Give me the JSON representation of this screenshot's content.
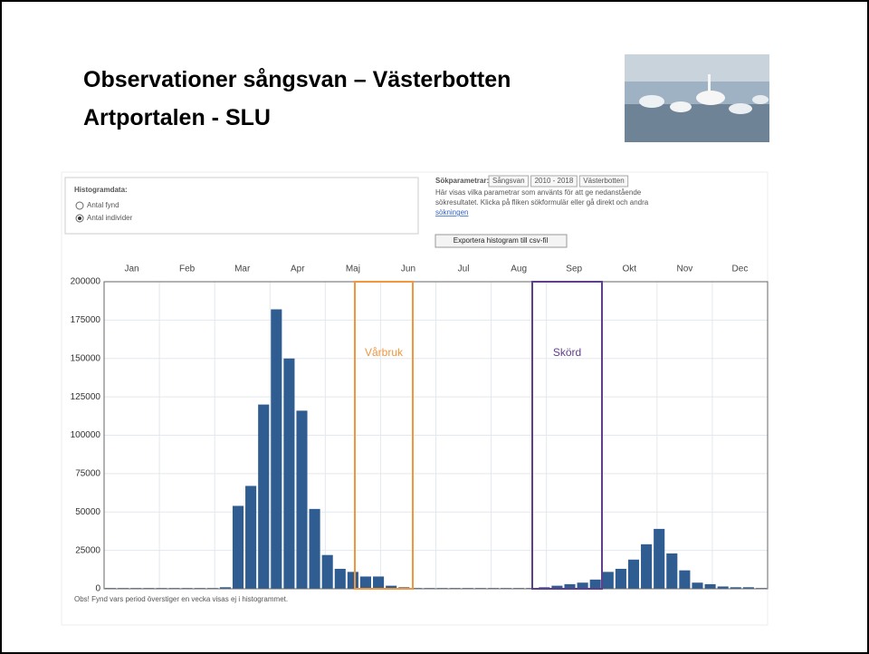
{
  "title": "Observationer sångsvan – Västerbotten",
  "subtitle": "Artportalen - SLU",
  "options": {
    "heading": "Histogramdata:",
    "items": [
      "Antal fynd",
      "Antal individer"
    ]
  },
  "search_params": {
    "heading": "Sökparametrar:",
    "tags": [
      "Sångsvan",
      "2010 - 2018",
      "Västerbotten"
    ],
    "text": [
      "Här visas vilka parametrar som använts för att ge nedanstående",
      "sökresultatet. Klicka på fliken sökformulär eller gå direkt och  andra",
      "sökningen"
    ]
  },
  "export_button": "Exportera histogram till csv-fil",
  "footnote": "Obs! Fynd vars period överstiger en vecka visas ej i histogrammet.",
  "chart_data": {
    "type": "bar",
    "color": "#2f5d91",
    "months": [
      "Jan",
      "Feb",
      "Mar",
      "Apr",
      "Maj",
      "Jun",
      "Jul",
      "Aug",
      "Sep",
      "Okt",
      "Nov",
      "Dec"
    ],
    "values": [
      500,
      500,
      500,
      500,
      500,
      500,
      500,
      500,
      500,
      1000,
      54000,
      67000,
      120000,
      182000,
      150000,
      116000,
      52000,
      22000,
      13000,
      11000,
      8000,
      8000,
      2000,
      1000,
      500,
      500,
      500,
      500,
      500,
      500,
      500,
      500,
      500,
      500,
      1000,
      2000,
      3000,
      4000,
      6000,
      11000,
      13000,
      19000,
      29000,
      39000,
      23000,
      12000,
      4000,
      3000,
      1500,
      1000,
      1000,
      500
    ],
    "ylim": [
      0,
      200000
    ],
    "yticks": [
      0,
      25000,
      50000,
      75000,
      100000,
      125000,
      150000,
      175000,
      200000
    ],
    "grid": true,
    "annotations": [
      {
        "label": "Vårbruk",
        "color": "#f0963c"
      },
      {
        "label": "Skörd",
        "color": "#5e3f8c"
      }
    ]
  }
}
